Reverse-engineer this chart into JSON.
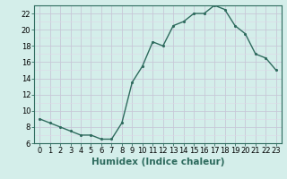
{
  "x": [
    0,
    1,
    2,
    3,
    4,
    5,
    6,
    7,
    8,
    9,
    10,
    11,
    12,
    13,
    14,
    15,
    16,
    17,
    18,
    19,
    20,
    21,
    22,
    23
  ],
  "y": [
    9,
    8.5,
    8,
    7.5,
    7,
    7,
    6.5,
    6.5,
    8.5,
    13.5,
    15.5,
    18.5,
    18,
    20.5,
    21,
    22,
    22,
    23,
    22.5,
    20.5,
    19.5,
    17,
    16.5,
    15
  ],
  "line_color": "#2e6b5e",
  "marker": ".",
  "bg_color": "#d4eeea",
  "grid_major_color": "#c8c8d8",
  "grid_minor_color": "#e0d8e8",
  "xlabel": "Humidex (Indice chaleur)",
  "ylabel": "",
  "xlim": [
    -0.5,
    23.5
  ],
  "ylim": [
    6,
    23
  ],
  "yticks": [
    6,
    8,
    10,
    12,
    14,
    16,
    18,
    20,
    22
  ],
  "xticks": [
    0,
    1,
    2,
    3,
    4,
    5,
    6,
    7,
    8,
    9,
    10,
    11,
    12,
    13,
    14,
    15,
    16,
    17,
    18,
    19,
    20,
    21,
    22,
    23
  ],
  "xlabel_fontsize": 7.5,
  "tick_fontsize": 6.0
}
